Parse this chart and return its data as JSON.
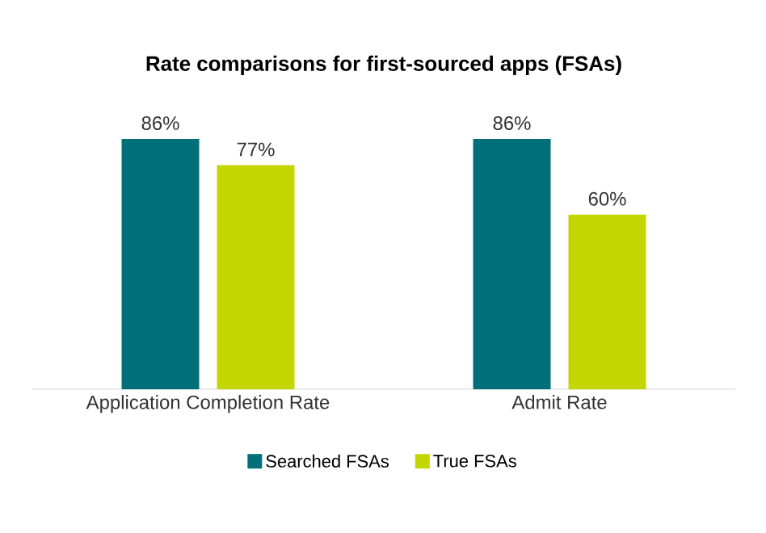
{
  "chart_data": {
    "type": "bar",
    "title": "Rate comparisons for first-sourced apps (FSAs)",
    "categories": [
      "Application Completion Rate",
      "Admit Rate"
    ],
    "series": [
      {
        "name": "Searched FSAs",
        "color": "#006f7a",
        "values": [
          86,
          86
        ],
        "value_labels": [
          "86%",
          "86%"
        ]
      },
      {
        "name": "True FSAs",
        "color": "#c4d600",
        "values": [
          77,
          60
        ],
        "value_labels": [
          "77%",
          "60%"
        ]
      }
    ],
    "legend": "bottom"
  }
}
